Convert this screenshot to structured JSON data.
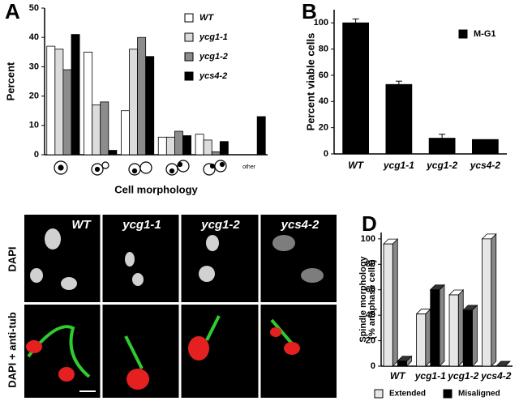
{
  "chart_data": [
    {
      "type": "bar",
      "panel_label": "A",
      "x_label": "Cell morphology",
      "y_label": "Percent",
      "categories": [
        null,
        null,
        null,
        null,
        null,
        "other"
      ],
      "series": [
        {
          "name": "WT",
          "color": "#ffffff",
          "values": [
            37,
            35,
            15,
            6,
            7,
            0
          ]
        },
        {
          "name": "ycg1-1",
          "color": "#dcdcdc",
          "values": [
            36,
            17,
            36,
            6,
            5,
            0
          ]
        },
        {
          "name": "ycg1-2",
          "color": "#8c8c8c",
          "values": [
            29,
            18,
            40,
            8,
            1,
            0
          ]
        },
        {
          "name": "ycs4-2",
          "color": "#000000",
          "values": [
            41,
            1.5,
            33.5,
            6.5,
            4.5,
            13
          ]
        }
      ],
      "ylim": [
        0,
        50
      ],
      "yticks": [
        0,
        10,
        20,
        30,
        40,
        50
      ],
      "legend": "upper right"
    },
    {
      "type": "bar",
      "panel_label": "B",
      "y_label": "Percent viable cells",
      "categories": [
        "WT",
        "ycg1-1",
        "ycg1-2",
        "ycs4-2"
      ],
      "series": [
        {
          "name": "M-G1",
          "color": "#000000",
          "values": [
            100,
            53,
            12,
            11
          ],
          "errors": [
            3,
            2.5,
            3,
            null
          ]
        }
      ],
      "ylim": [
        0,
        110
      ],
      "yticks": [
        0,
        20,
        40,
        60,
        80,
        100
      ],
      "legend": "upper right"
    },
    {
      "type": "bar3d",
      "panel_label": "D",
      "y_label": [
        "Spindle morphology",
        "(% anaphase cells)"
      ],
      "categories": [
        "WT",
        "ycg1-1",
        "ycg1-2",
        "ycs4-2"
      ],
      "series": [
        {
          "name": "Extended",
          "color": "#e6e6e6",
          "values": [
            96,
            41,
            56,
            100
          ]
        },
        {
          "name": "Misaligned",
          "color": "#000000",
          "values": [
            4,
            60,
            44,
            0
          ]
        }
      ],
      "ylim": [
        0,
        105
      ],
      "yticks": [
        0,
        20,
        40,
        60,
        80,
        100
      ],
      "legend": "bottom"
    }
  ],
  "image_panel": {
    "panel_label": "C",
    "columns": [
      "WT",
      "ycg1-1",
      "ycg1-2",
      "ycs4-2"
    ],
    "rows": [
      "DAPI",
      "DAPI + anti-tub"
    ]
  }
}
